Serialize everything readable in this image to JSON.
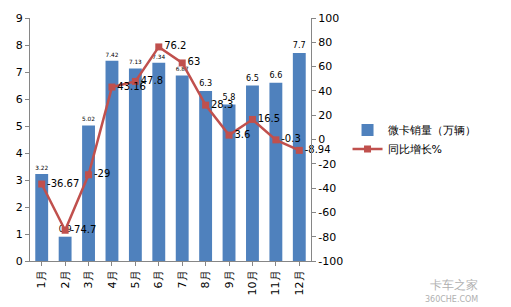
{
  "chart_data": {
    "type": "bar",
    "categories": [
      "1月",
      "2月",
      "3月",
      "4月",
      "5月",
      "6月",
      "7月",
      "8月",
      "9月",
      "10月",
      "11月",
      "12月"
    ],
    "series": [
      {
        "name": "微卡销量（万辆）",
        "type": "bar",
        "color": "#4f81bd",
        "values": [
          3.22,
          0.9,
          5.02,
          7.42,
          7.13,
          7.34,
          6.87,
          6.3,
          5.8,
          6.5,
          6.6,
          7.7
        ]
      },
      {
        "name": "同比增长%",
        "type": "line",
        "color": "#c0504d",
        "marker": "square",
        "axis": "y2",
        "values": [
          -36.67,
          -74.7,
          -29,
          43.16,
          47.8,
          76.2,
          63,
          28.3,
          3.6,
          16.5,
          -0.3,
          -8.94
        ]
      }
    ],
    "ylim": [
      0,
      9
    ],
    "yticks": [
      0,
      1,
      2,
      3,
      4,
      5,
      6,
      7,
      8,
      9
    ],
    "y2lim": [
      -100,
      100
    ],
    "y2ticks": [
      -100,
      -80,
      -60,
      -40,
      -20,
      0,
      20,
      40,
      60,
      80,
      100
    ],
    "grid": false,
    "legend": "right",
    "data_labels": true,
    "annotations": [
      "卡车之家",
      "360CHE.COM"
    ]
  }
}
